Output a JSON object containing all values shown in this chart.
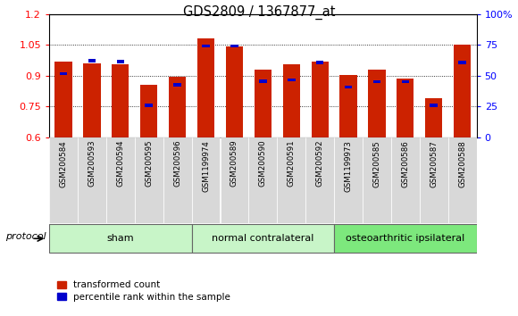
{
  "title": "GDS2809 / 1367877_at",
  "samples": [
    "GSM200584",
    "GSM200593",
    "GSM200594",
    "GSM200595",
    "GSM200596",
    "GSM1199974",
    "GSM200589",
    "GSM200590",
    "GSM200591",
    "GSM200592",
    "GSM1199973",
    "GSM200585",
    "GSM200586",
    "GSM200587",
    "GSM200588"
  ],
  "red_values": [
    0.97,
    0.96,
    0.955,
    0.855,
    0.895,
    1.082,
    1.045,
    0.93,
    0.955,
    0.97,
    0.905,
    0.93,
    0.885,
    0.79,
    1.05
  ],
  "blue_values": [
    0.91,
    0.975,
    0.97,
    0.755,
    0.855,
    1.045,
    1.045,
    0.873,
    0.88,
    0.965,
    0.845,
    0.872,
    0.872,
    0.755,
    0.965
  ],
  "groups": [
    {
      "name": "sham",
      "start": 0,
      "end": 5
    },
    {
      "name": "normal contralateral",
      "start": 5,
      "end": 10
    },
    {
      "name": "osteoarthritic ipsilateral",
      "start": 10,
      "end": 15
    }
  ],
  "group_colors": [
    "#c8f5c8",
    "#c8f5c8",
    "#7de87d"
  ],
  "ymin": 0.6,
  "ymax": 1.2,
  "bar_color": "#cc2200",
  "dot_color": "#0000cc",
  "yticks_left": [
    0.6,
    0.75,
    0.9,
    1.05,
    1.2
  ],
  "yticks_right": [
    0,
    25,
    50,
    75,
    100
  ],
  "grid_lines": [
    0.75,
    0.9,
    1.05
  ],
  "legend_red": "transformed count",
  "legend_blue": "percentile rank within the sample",
  "protocol_label": "protocol",
  "tick_bg_color": "#d8d8d8"
}
